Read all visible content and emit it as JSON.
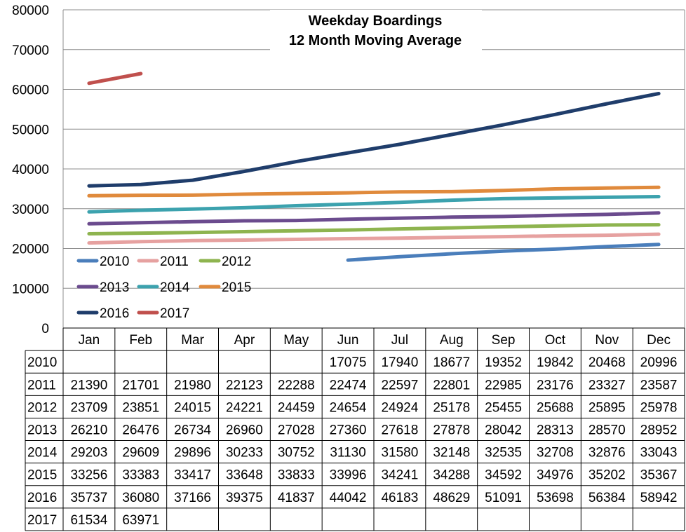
{
  "chart_data": {
    "type": "line",
    "title": [
      "Weekday Boardings",
      "12 Month Moving Average"
    ],
    "categories": [
      "Jan",
      "Feb",
      "Mar",
      "Apr",
      "May",
      "Jun",
      "Jul",
      "Aug",
      "Sep",
      "Oct",
      "Nov",
      "Dec"
    ],
    "ylim": [
      0,
      80000
    ],
    "yticks": [
      "0",
      "10000",
      "20000",
      "30000",
      "40000",
      "50000",
      "60000",
      "70000",
      "80000"
    ],
    "grid": true,
    "legend_placement": "lower-left",
    "series": [
      {
        "name": "2010",
        "color": "#4a7ebb",
        "values": [
          null,
          null,
          null,
          null,
          null,
          17075,
          17940,
          18677,
          19352,
          19842,
          20468,
          20996
        ]
      },
      {
        "name": "2011",
        "color": "#e6a1a0",
        "values": [
          21390,
          21701,
          21980,
          22123,
          22288,
          22474,
          22597,
          22801,
          22985,
          23176,
          23327,
          23587
        ]
      },
      {
        "name": "2012",
        "color": "#8eb44f",
        "values": [
          23709,
          23851,
          24015,
          24221,
          24459,
          24654,
          24924,
          25178,
          25455,
          25688,
          25895,
          25978
        ]
      },
      {
        "name": "2013",
        "color": "#6b4b8e",
        "values": [
          26210,
          26476,
          26734,
          26960,
          27028,
          27360,
          27618,
          27878,
          28042,
          28313,
          28570,
          28952
        ]
      },
      {
        "name": "2014",
        "color": "#3ca2ae",
        "values": [
          29203,
          29609,
          29896,
          30233,
          30752,
          31130,
          31580,
          32148,
          32535,
          32708,
          32876,
          33043
        ]
      },
      {
        "name": "2015",
        "color": "#e08a3c",
        "values": [
          33256,
          33383,
          33417,
          33648,
          33833,
          33996,
          34241,
          34288,
          34592,
          34976,
          35202,
          35367
        ]
      },
      {
        "name": "2016",
        "color": "#1f3d6b",
        "values": [
          35737,
          36080,
          37166,
          39375,
          41837,
          44042,
          46183,
          48629,
          51091,
          53698,
          56384,
          58942
        ]
      },
      {
        "name": "2017",
        "color": "#c0504d",
        "values": [
          61534,
          63971,
          null,
          null,
          null,
          null,
          null,
          null,
          null,
          null,
          null,
          null
        ]
      }
    ],
    "table": [
      {
        "year": "2010",
        "cells": [
          "",
          "",
          "",
          "",
          "",
          "17075",
          "17940",
          "18677",
          "19352",
          "19842",
          "20468",
          "20996"
        ]
      },
      {
        "year": "2011",
        "cells": [
          "21390",
          "21701",
          "21980",
          "22123",
          "22288",
          "22474",
          "22597",
          "22801",
          "22985",
          "23176",
          "23327",
          "23587"
        ]
      },
      {
        "year": "2012",
        "cells": [
          "23709",
          "23851",
          "24015",
          "24221",
          "24459",
          "24654",
          "24924",
          "25178",
          "25455",
          "25688",
          "25895",
          "25978"
        ]
      },
      {
        "year": "2013",
        "cells": [
          "26210",
          "26476",
          "26734",
          "26960",
          "27028",
          "27360",
          "27618",
          "27878",
          "28042",
          "28313",
          "28570",
          "28952"
        ]
      },
      {
        "year": "2014",
        "cells": [
          "29203",
          "29609",
          "29896",
          "30233",
          "30752",
          "31130",
          "31580",
          "32148",
          "32535",
          "32708",
          "32876",
          "33043"
        ]
      },
      {
        "year": "2015",
        "cells": [
          "33256",
          "33383",
          "33417",
          "33648",
          "33833",
          "33996",
          "34241",
          "34288",
          "34592",
          "34976",
          "35202",
          "35367"
        ]
      },
      {
        "year": "2016",
        "cells": [
          "35737",
          "36080",
          "37166",
          "39375",
          "41837",
          "44042",
          "46183",
          "48629",
          "51091",
          "53698",
          "56384",
          "58942"
        ]
      },
      {
        "year": "2017",
        "cells": [
          "61534",
          "63971",
          "",
          "",
          "",
          "",
          "",
          "",
          "",
          "",
          "",
          ""
        ]
      }
    ]
  }
}
